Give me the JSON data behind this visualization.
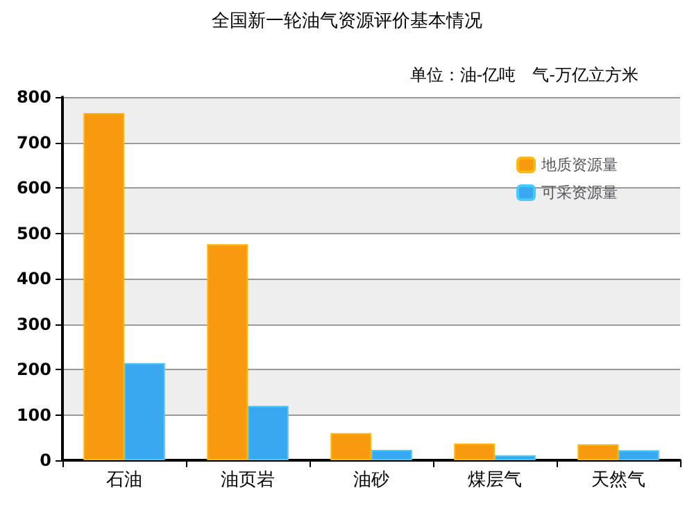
{
  "chart_data": {
    "type": "bar",
    "title": "全国新一轮油气资源评价基本情况",
    "annotations": [
      "单位：油-亿吨　气-万亿立方米"
    ],
    "categories": [
      "石油",
      "油页岩",
      "油砂",
      "煤层气",
      "天然气"
    ],
    "series": [
      {
        "name": "地质资源量",
        "color": "#f79a10",
        "values": [
          765,
          476,
          60,
          37,
          35
        ]
      },
      {
        "name": "可采资源量",
        "color": "#3aa8f0",
        "values": [
          214,
          120,
          23,
          11,
          22
        ]
      }
    ],
    "ylim": [
      0,
      800
    ],
    "yticks": [
      0,
      100,
      200,
      300,
      400,
      500,
      600,
      700,
      800
    ],
    "grid": true,
    "legend": "top right"
  }
}
